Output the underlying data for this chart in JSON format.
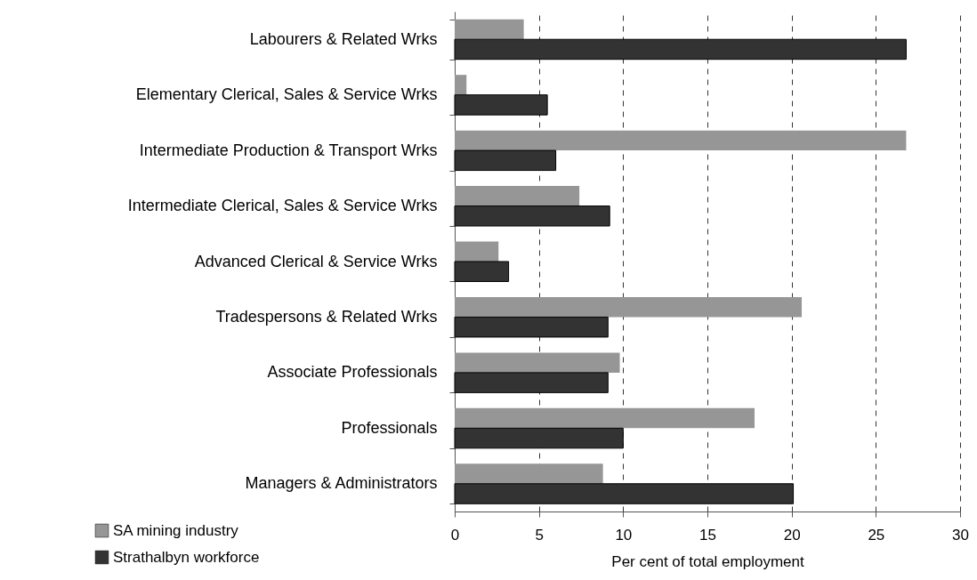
{
  "chart_data": {
    "type": "bar",
    "orientation": "horizontal",
    "xlabel": "Per cent of total employment",
    "categories": [
      "Labourers & Related Wrks",
      "Elementary Clerical, Sales & Service Wrks",
      "Intermediate Production & Transport Wrks",
      "Intermediate Clerical, Sales & Service Wrks",
      "Advanced Clerical & Service Wrks",
      "Tradespersons & Related Wrks",
      "Associate Professionals",
      "Professionals",
      "Managers & Administrators"
    ],
    "series": [
      {
        "name": "SA mining industry",
        "color": "#969696",
        "values": [
          4.1,
          0.7,
          26.8,
          7.4,
          2.6,
          20.6,
          9.8,
          17.8,
          8.8
        ]
      },
      {
        "name": "Strathalbyn workforce",
        "color": "#333333",
        "values": [
          26.8,
          5.5,
          6.0,
          9.2,
          3.2,
          9.1,
          9.1,
          10.0,
          20.1
        ]
      }
    ],
    "xlim": [
      0,
      30
    ],
    "xticks": [
      0,
      5,
      10,
      15,
      20,
      25,
      30
    ],
    "grid": "x",
    "legend": "bottom left"
  }
}
